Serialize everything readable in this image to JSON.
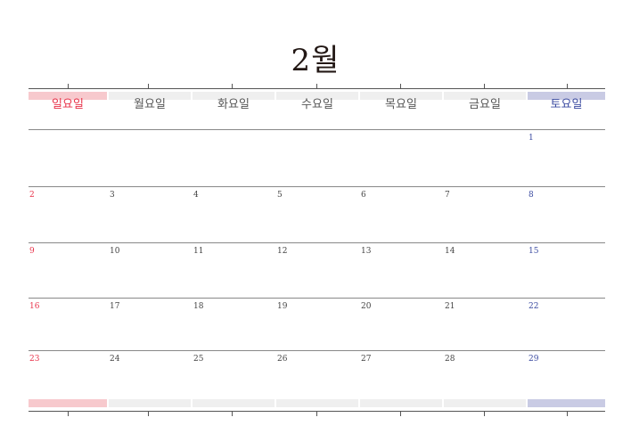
{
  "calendar": {
    "month_title": "2월",
    "weekdays": [
      "일요일",
      "월요일",
      "화요일",
      "수요일",
      "목요일",
      "금요일",
      "토요일"
    ],
    "colors": {
      "sunday": "#e8334a",
      "saturday": "#3a4aa0",
      "weekday": "#555555",
      "sunday_band": "#f7c9cd",
      "saturday_band": "#c9cbe4",
      "weekday_band": "#efefef"
    },
    "weeks": [
      [
        "",
        "",
        "",
        "",
        "",
        "",
        "1"
      ],
      [
        "2",
        "3",
        "4",
        "5",
        "6",
        "7",
        "8"
      ],
      [
        "9",
        "10",
        "11",
        "12",
        "13",
        "14",
        "15"
      ],
      [
        "16",
        "17",
        "18",
        "19",
        "20",
        "21",
        "22"
      ],
      [
        "23",
        "24",
        "25",
        "26",
        "27",
        "28",
        "29"
      ]
    ]
  }
}
